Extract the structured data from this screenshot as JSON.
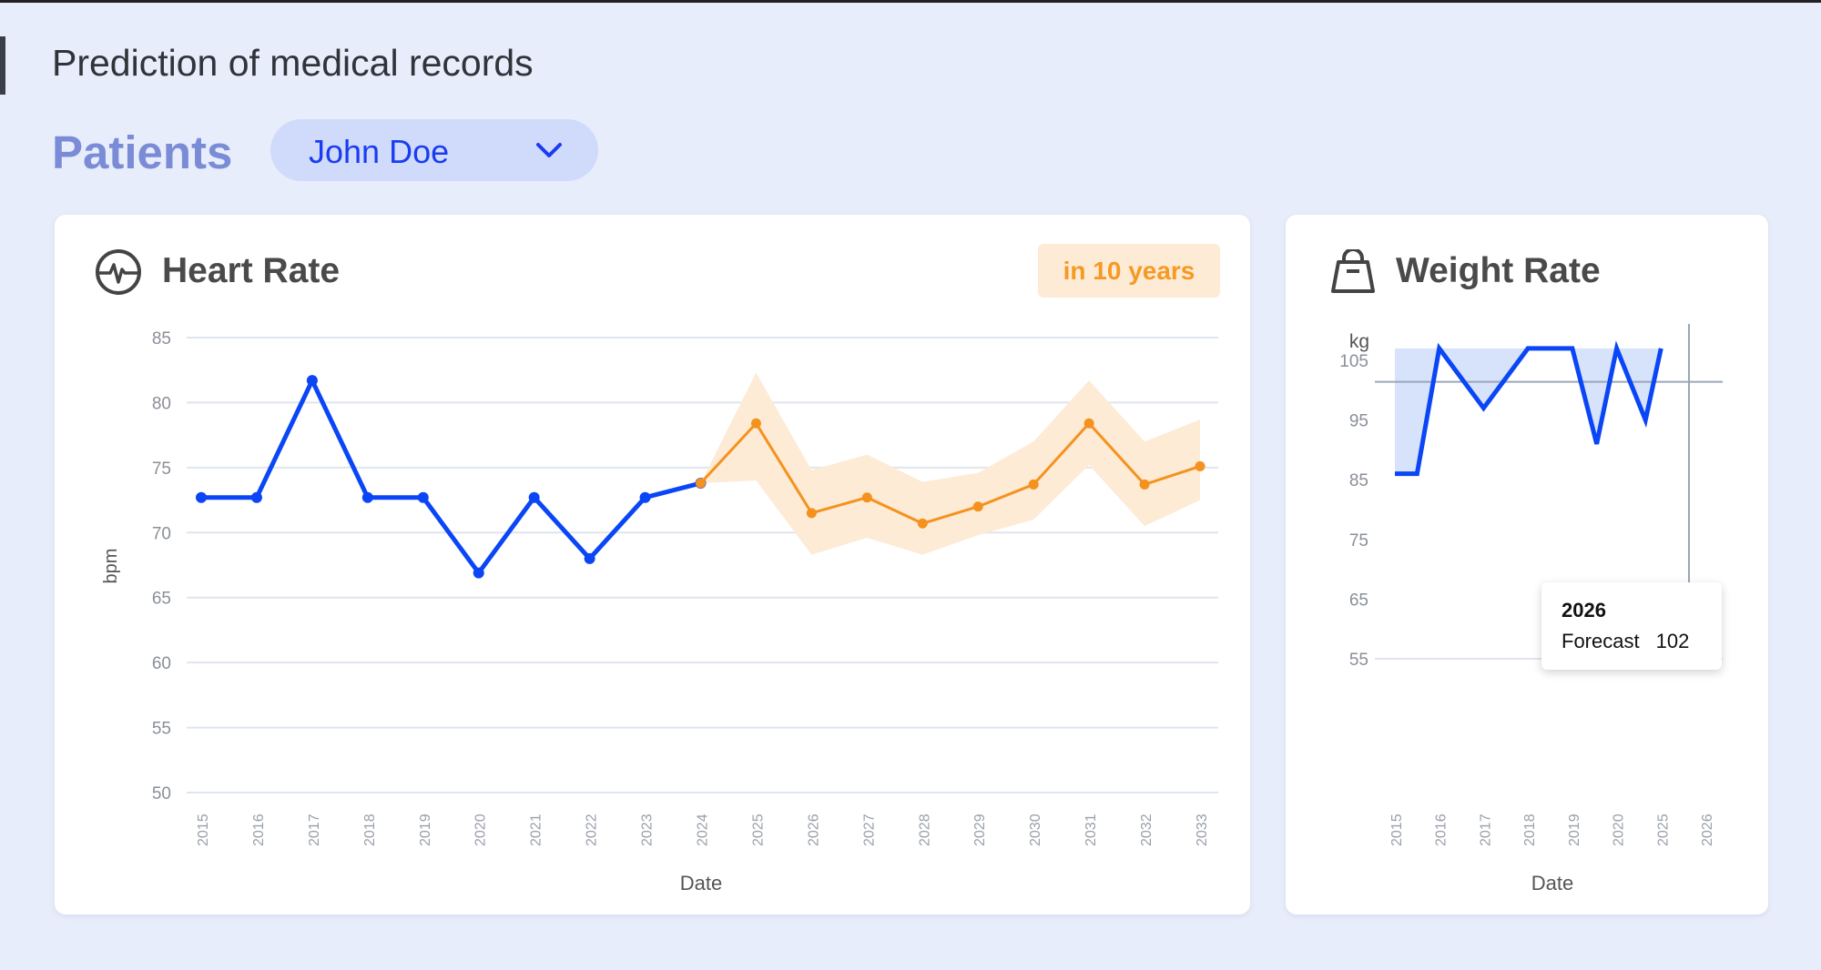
{
  "header": {
    "title": "Prediction of medical records"
  },
  "patients": {
    "label": "Patients",
    "selected": "John Doe"
  },
  "colors": {
    "actual": "#0a46f5",
    "forecast": "#f5921e",
    "band": "#fdebd6",
    "weight_fill": "#d7e3fb"
  },
  "heart": {
    "title": "Heart Rate",
    "icon": "heart-pulse-icon",
    "badge": "in 10 years",
    "chart_data": {
      "type": "line",
      "xlabel": "Date",
      "ylabel": "bpm",
      "ylim": [
        50,
        85
      ],
      "yticks": [
        50,
        55,
        60,
        65,
        70,
        75,
        80,
        85
      ],
      "grid": true,
      "categories": [
        "2015",
        "2016",
        "2017",
        "2018",
        "2019",
        "2020",
        "2021",
        "2022",
        "2023",
        "2024",
        "2025",
        "2026",
        "2027",
        "2028",
        "2029",
        "2030",
        "2031",
        "2032",
        "2033"
      ],
      "series": [
        {
          "role": "actual",
          "x": [
            "2015",
            "2016",
            "2017",
            "2018",
            "2019",
            "2020",
            "2021",
            "2022",
            "2023",
            "2024"
          ],
          "values": [
            72.7,
            72.7,
            81.7,
            72.7,
            72.7,
            66.9,
            72.7,
            68.0,
            72.7,
            73.8
          ]
        },
        {
          "role": "forecast",
          "x": [
            "2024",
            "2025",
            "2026",
            "2027",
            "2028",
            "2029",
            "2030",
            "2031",
            "2032",
            "2033"
          ],
          "values": [
            73.8,
            78.4,
            71.5,
            72.7,
            70.7,
            72.0,
            73.7,
            78.4,
            73.7,
            75.1
          ],
          "upper": [
            73.8,
            82.3,
            74.8,
            76.0,
            73.9,
            74.6,
            77.0,
            81.7,
            77.0,
            78.7
          ],
          "lower": [
            73.8,
            74.0,
            68.3,
            69.6,
            68.3,
            69.8,
            71.0,
            75.2,
            70.5,
            72.5
          ]
        }
      ]
    }
  },
  "weight": {
    "title": "Weight Rate",
    "icon": "weight-icon",
    "chart_data": {
      "type": "area",
      "xlabel": "Date",
      "ylabel": "kg",
      "ylim": [
        55,
        108
      ],
      "yticks": [
        55,
        65,
        75,
        85,
        95,
        105
      ],
      "categories": [
        "2015",
        "2016",
        "2017",
        "2018",
        "2019",
        "2020",
        "2025",
        "2026"
      ],
      "series": [
        {
          "x": [
            0,
            0.5,
            1,
            2,
            3,
            4,
            4.55,
            5,
            5.65,
            6
          ],
          "values": [
            86,
            86,
            107,
            97,
            107,
            107,
            91,
            107,
            95,
            107
          ]
        }
      ],
      "reference_line": 101.4
    },
    "tooltip": {
      "title": "2026",
      "label": "Forecast",
      "value": "102"
    }
  }
}
